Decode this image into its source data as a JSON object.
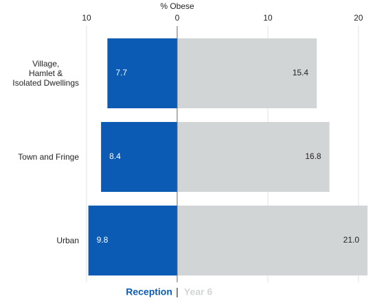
{
  "chart_data": {
    "type": "diverging-bar",
    "x_label": "% Obese",
    "categories": [
      "Village,\nHamlet &\nIsolated Dwellings",
      "Town and Fringe",
      "Urban"
    ],
    "series": [
      {
        "name": "Reception",
        "color": "#0b5bb5",
        "side": "left",
        "values": [
          7.7,
          8.4,
          9.8
        ],
        "value_labels": [
          "7.7",
          "8.4",
          "9.8"
        ]
      },
      {
        "name": "Year 6",
        "color": "#d1d5d5",
        "side": "right",
        "values": [
          15.4,
          16.8,
          21.0
        ],
        "value_labels": [
          "15.4",
          "16.8",
          "21.0"
        ]
      }
    ],
    "xlim": [
      -10,
      21
    ],
    "xticks": [
      {
        "value": -10,
        "label": "10"
      },
      0,
      10,
      20
    ],
    "grid": true,
    "legend": "bottom"
  }
}
